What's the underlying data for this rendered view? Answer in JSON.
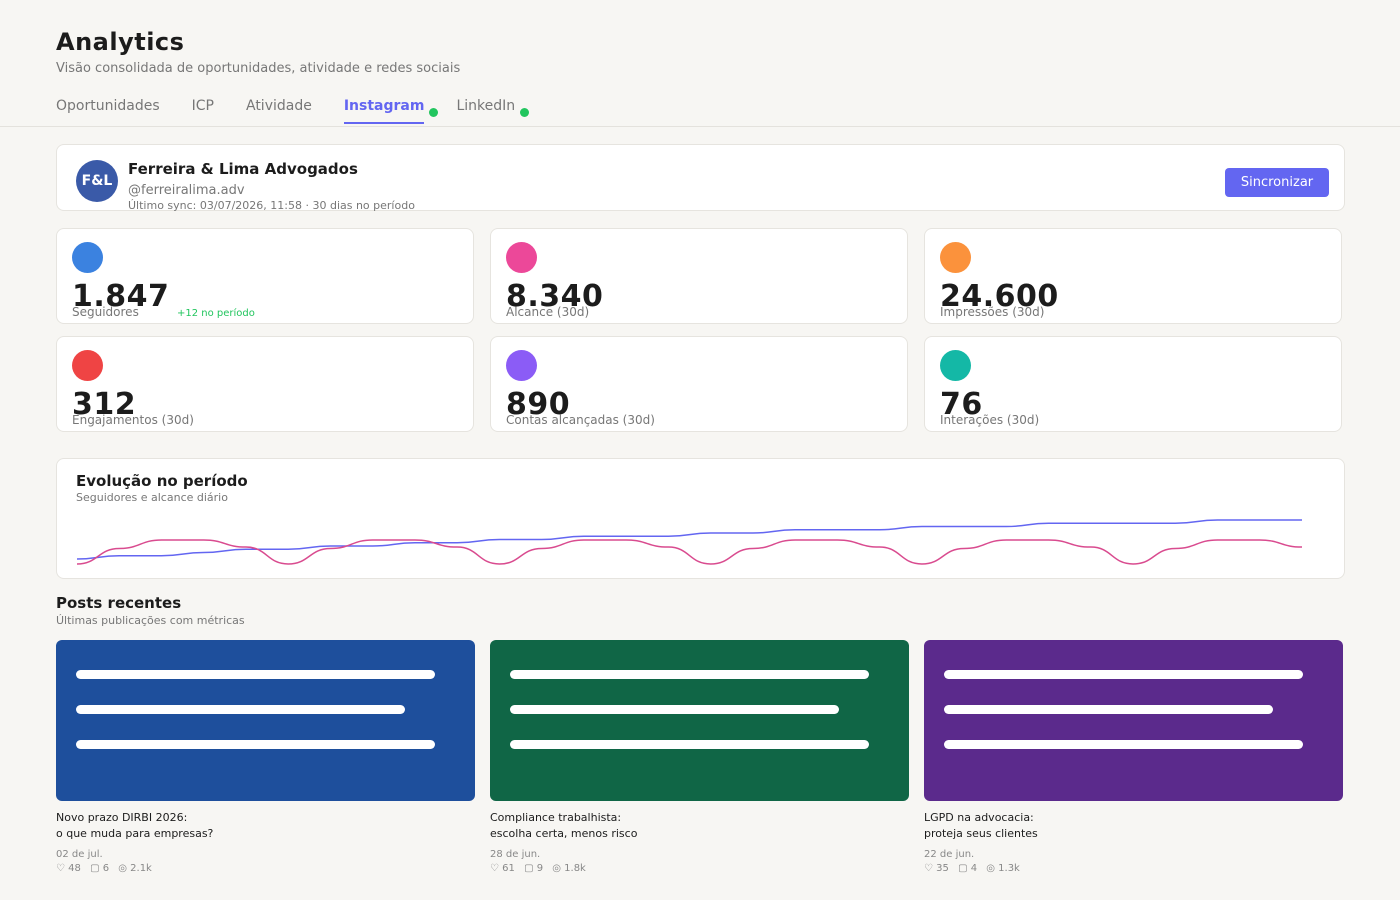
{
  "header": {
    "title": "Analytics",
    "subtitle": "Visão consolidada de oportunidades, atividade e redes sociais"
  },
  "tabs": [
    {
      "label": "Oportunidades",
      "active": false,
      "connected": false
    },
    {
      "label": "ICP",
      "active": false,
      "connected": false
    },
    {
      "label": "Atividade",
      "active": false,
      "connected": false
    },
    {
      "label": "Instagram",
      "active": true,
      "connected": true
    },
    {
      "label": "LinkedIn",
      "active": false,
      "connected": true
    }
  ],
  "profile": {
    "initials": "F&L",
    "name": "Ferreira & Lima Advogados",
    "handle": "@ferreiralima.adv",
    "sync_info": "Último sync: 03/07/2026, 11:58  ·  30 dias no período",
    "sync_button": "Sincronizar"
  },
  "stats": [
    {
      "value": "1.847",
      "label": "Seguidores",
      "delta": "+12 no período",
      "color": "#3b82e0"
    },
    {
      "value": "8.340",
      "label": "Alcance (30d)",
      "delta": "",
      "color": "#ec4899"
    },
    {
      "value": "24.600",
      "label": "Impressões (30d)",
      "delta": "",
      "color": "#fb923c"
    },
    {
      "value": "312",
      "label": "Engajamentos (30d)",
      "delta": "",
      "color": "#ef4444"
    },
    {
      "value": "890",
      "label": "Contas alcançadas (30d)",
      "delta": "",
      "color": "#8b5cf6"
    },
    {
      "value": "76",
      "label": "Interações (30d)",
      "delta": "",
      "color": "#14b8a6"
    }
  ],
  "chart": {
    "title": "Evolução no período",
    "subtitle": "Seguidores e alcance diário"
  },
  "chart_data": {
    "type": "line",
    "title": "Evolução no período",
    "subtitle": "Seguidores e alcance diário",
    "x": [
      1,
      2,
      3,
      4,
      5,
      6,
      7,
      8,
      9,
      10,
      11,
      12,
      13,
      14,
      15,
      16,
      17,
      18,
      19,
      20,
      21,
      22,
      23,
      24,
      25,
      26,
      27,
      28,
      29,
      30
    ],
    "series": [
      {
        "color": "#6366f1",
        "values": [
          1835,
          1836,
          1836,
          1837,
          1838,
          1838,
          1839,
          1839,
          1840,
          1840,
          1841,
          1841,
          1842,
          1842,
          1842,
          1843,
          1843,
          1844,
          1844,
          1844,
          1845,
          1845,
          1845,
          1846,
          1846,
          1846,
          1846,
          1847,
          1847,
          1847
        ]
      },
      {
        "color": "#d94b8f",
        "values": [
          150,
          260,
          320,
          320,
          270,
          150,
          260,
          320,
          320,
          270,
          150,
          260,
          320,
          320,
          270,
          150,
          260,
          320,
          320,
          270,
          150,
          260,
          320,
          320,
          270,
          150,
          260,
          320,
          320,
          270
        ]
      }
    ],
    "grid": false,
    "legend": "none"
  },
  "posts_section": {
    "title": "Posts recentes",
    "subtitle": "Últimas publicações com métricas"
  },
  "posts": [
    {
      "color": "#1e4f9c",
      "title_line1": "Novo prazo DIRBI 2026:",
      "title_line2": "o que muda para empresas?",
      "date": "02 de jul.",
      "likes": "♡ 48",
      "comments": "▢ 6",
      "reach": "◎ 2.1k"
    },
    {
      "color": "#106646",
      "title_line1": "Compliance trabalhista:",
      "title_line2": "escolha certa, menos risco",
      "date": "28 de jun.",
      "likes": "♡ 61",
      "comments": "▢ 9",
      "reach": "◎ 1.8k"
    },
    {
      "color": "#5b2a8c",
      "title_line1": "LGPD na advocacia:",
      "title_line2": "proteja seus clientes",
      "date": "22 de jun.",
      "likes": "♡ 35",
      "comments": "▢ 4",
      "reach": "◎ 1.3k"
    }
  ]
}
